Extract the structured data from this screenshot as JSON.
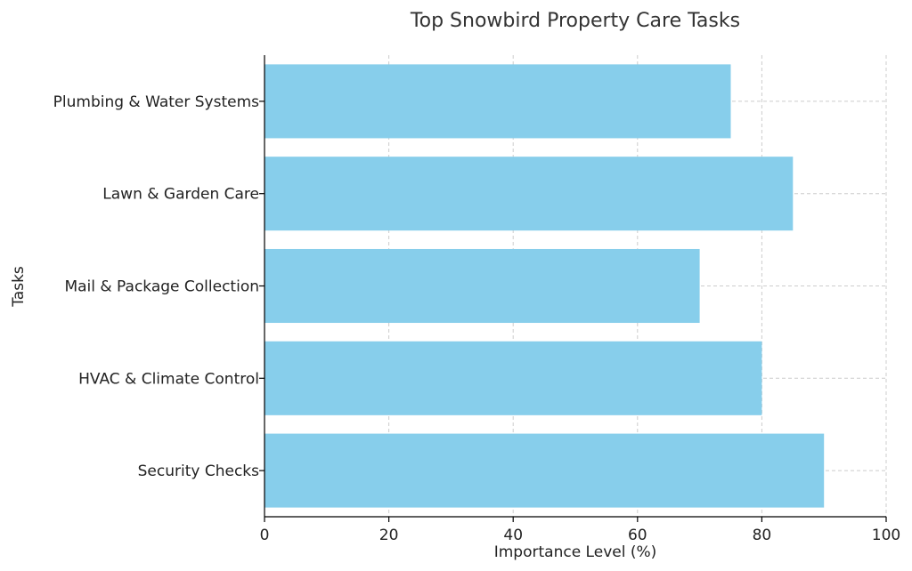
{
  "chart_data": {
    "type": "bar",
    "orientation": "horizontal",
    "title": "Top Snowbird Property Care Tasks",
    "xlabel": "Importance Level (%)",
    "ylabel": "Tasks",
    "categories": [
      "Security Checks",
      "HVAC & Climate Control",
      "Mail & Package Collection",
      "Lawn & Garden Care",
      "Plumbing & Water Systems"
    ],
    "values": [
      90,
      80,
      70,
      85,
      75
    ],
    "xlim": [
      0,
      100
    ],
    "xticks": [
      0,
      20,
      40,
      60,
      80,
      100
    ],
    "grid": true,
    "bar_color": "#87CEEB"
  }
}
